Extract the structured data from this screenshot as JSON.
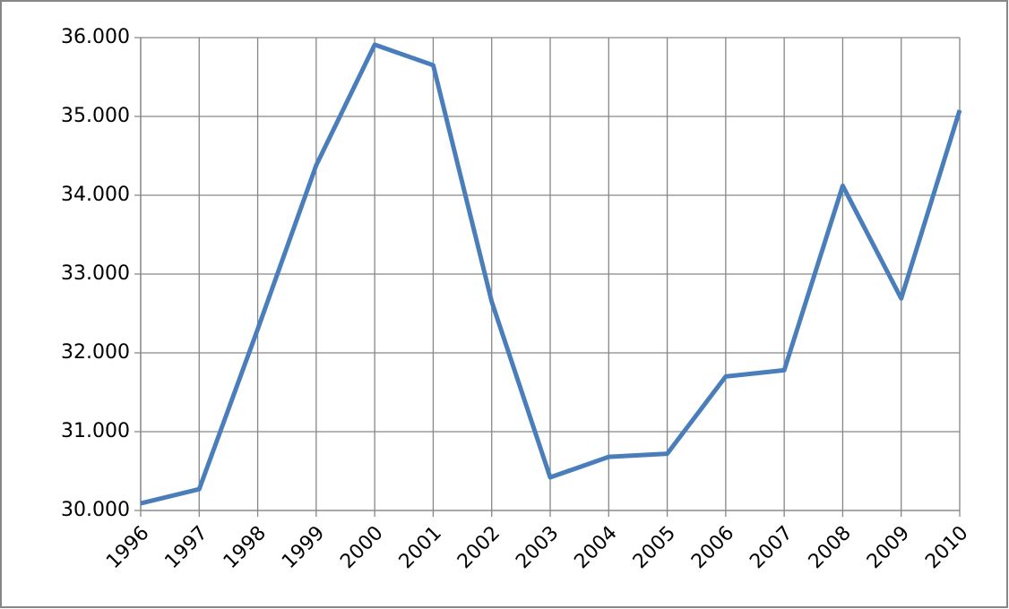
{
  "chart_data": {
    "type": "line",
    "categories": [
      "1996",
      "1997",
      "1998",
      "1999",
      "2000",
      "2001",
      "2002",
      "2003",
      "2004",
      "2005",
      "2006",
      "2007",
      "2008",
      "2009",
      "2010"
    ],
    "series": [
      {
        "color": "#4a7ebb",
        "values": [
          30090,
          30270,
          32300,
          34380,
          35910,
          35650,
          32650,
          30420,
          30680,
          30720,
          31700,
          31780,
          34120,
          32690,
          35080
        ]
      }
    ],
    "ylim": [
      30000,
      36000
    ],
    "yticks": [
      {
        "value": 30000,
        "label": "30.000"
      },
      {
        "value": 31000,
        "label": "31.000"
      },
      {
        "value": 32000,
        "label": "32.000"
      },
      {
        "value": 33000,
        "label": "33.000"
      },
      {
        "value": 34000,
        "label": "34.000"
      },
      {
        "value": 35000,
        "label": "35.000"
      },
      {
        "value": 36000,
        "label": "36.000"
      }
    ],
    "grid": true
  }
}
